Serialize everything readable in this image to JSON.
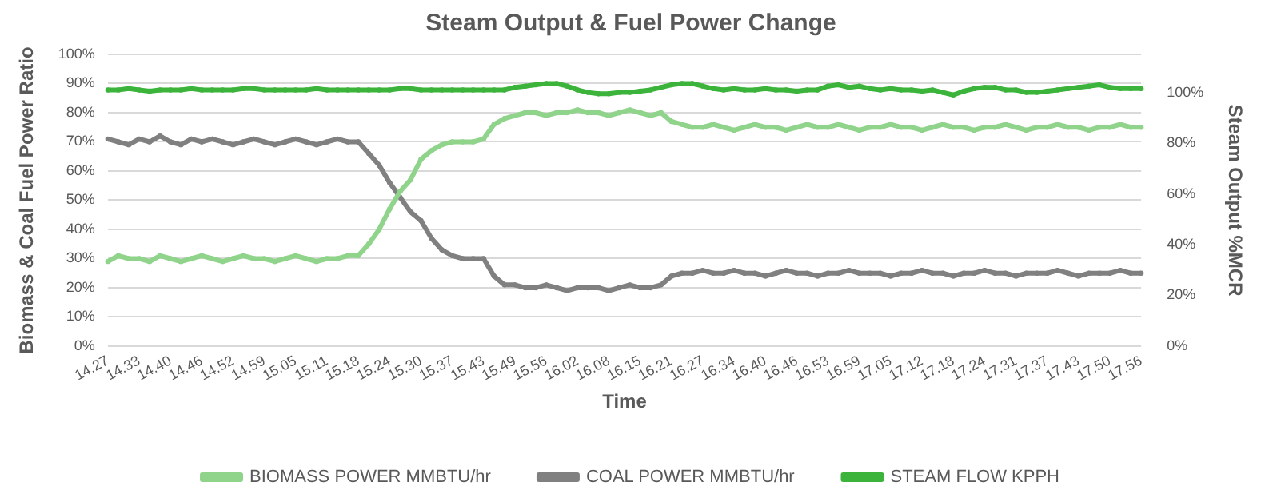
{
  "chart_data": {
    "type": "line",
    "title": "Steam Output & Fuel Power Change",
    "xlabel": "Time",
    "ylabel": "Biomass & Coal Fuel Power Ratio",
    "y2label": "Steam Output %MCR",
    "categories": [
      "14.27",
      null,
      null,
      "14.33",
      null,
      null,
      "14.40",
      null,
      null,
      "14.46",
      null,
      null,
      "14.52",
      null,
      null,
      "14.59",
      null,
      null,
      "15.05",
      null,
      null,
      "15.11",
      null,
      null,
      "15.18",
      null,
      null,
      "15.24",
      null,
      null,
      "15.30",
      null,
      null,
      "15.37",
      null,
      null,
      "15.43",
      null,
      null,
      "15.49",
      null,
      null,
      "15.56",
      null,
      null,
      "16.02",
      null,
      null,
      "16.08",
      null,
      null,
      "16.15",
      null,
      null,
      "16.21",
      null,
      null,
      "16.27",
      null,
      null,
      "16.34",
      null,
      null,
      "16.40",
      null,
      null,
      "16.46",
      null,
      null,
      "16.53",
      null,
      null,
      "16.59",
      null,
      null,
      "17.05",
      null,
      null,
      "17.12",
      null,
      null,
      "17.18",
      null,
      null,
      "17.24",
      null,
      null,
      "17.31",
      null,
      null,
      "17.37",
      null,
      null,
      "17.43",
      null,
      null,
      "17.50",
      null,
      null,
      "17.56"
    ],
    "series": [
      {
        "name": "BIOMASS POWER MMBTU/hr",
        "color": "#8fd48a",
        "values": [
          29,
          31,
          30,
          30,
          29,
          31,
          30,
          29,
          30,
          31,
          30,
          29,
          30,
          31,
          30,
          30,
          29,
          30,
          31,
          30,
          29,
          30,
          30,
          31,
          31,
          35,
          40,
          47,
          53,
          57,
          64,
          67,
          69,
          70,
          70,
          70,
          71,
          76,
          78,
          79,
          80,
          80,
          79,
          80,
          80,
          81,
          80,
          80,
          79,
          80,
          81,
          80,
          79,
          80,
          77,
          76,
          75,
          75,
          76,
          75,
          74,
          75,
          76,
          75,
          75,
          74,
          75,
          76,
          75,
          75,
          76,
          75,
          74,
          75,
          75,
          76,
          75,
          75,
          74,
          75,
          76,
          75,
          75,
          74,
          75,
          75,
          76,
          75,
          74,
          75,
          75,
          76,
          75,
          75,
          74,
          75,
          75,
          76,
          75,
          75
        ]
      },
      {
        "name": "COAL POWER MMBTU/hr",
        "color": "#808080",
        "values": [
          71,
          70,
          69,
          71,
          70,
          72,
          70,
          69,
          71,
          70,
          71,
          70,
          69,
          70,
          71,
          70,
          69,
          70,
          71,
          70,
          69,
          70,
          71,
          70,
          70,
          66,
          62,
          56,
          51,
          46,
          43,
          37,
          33,
          31,
          30,
          30,
          30,
          24,
          21,
          21,
          20,
          20,
          21,
          20,
          19,
          20,
          20,
          20,
          19,
          20,
          21,
          20,
          20,
          21,
          24,
          25,
          25,
          26,
          25,
          25,
          26,
          25,
          25,
          24,
          25,
          26,
          25,
          25,
          24,
          25,
          25,
          26,
          25,
          25,
          25,
          24,
          25,
          25,
          26,
          25,
          25,
          24,
          25,
          25,
          26,
          25,
          25,
          24,
          25,
          25,
          25,
          26,
          25,
          24,
          25,
          25,
          25,
          26,
          25,
          25
        ]
      },
      {
        "name": "STEAM FLOW KPPH",
        "color": "#3cb43c",
        "axis": "y2",
        "values": [
          101,
          101,
          101.5,
          101,
          100.5,
          101,
          101,
          101,
          101.5,
          101,
          101,
          101,
          101,
          101.5,
          101.5,
          101,
          101,
          101,
          101,
          101,
          101.5,
          101,
          101,
          101,
          101,
          101,
          101,
          101,
          101.5,
          101.5,
          101,
          101,
          101,
          101,
          101,
          101,
          101,
          101,
          101,
          102,
          102.5,
          103,
          103.5,
          103.5,
          102.5,
          101,
          100,
          99.5,
          99.5,
          100,
          100,
          100.5,
          101,
          102,
          103,
          103.5,
          103.5,
          102.5,
          101.5,
          101,
          101.5,
          101,
          101,
          101.5,
          101,
          101,
          100.5,
          101,
          101,
          102.5,
          103,
          102,
          102.5,
          101.5,
          101,
          101.5,
          101,
          101,
          100.5,
          101,
          100,
          99,
          100.5,
          101.5,
          102,
          102,
          101,
          101,
          100,
          100,
          100.5,
          101,
          101.5,
          102,
          102.5,
          103,
          102,
          101.5,
          101.5,
          101.5
        ]
      }
    ],
    "ylim": [
      0,
      100
    ],
    "yticks": [
      {
        "value": 0,
        "label": "0%"
      },
      {
        "value": 10,
        "label": "10%"
      },
      {
        "value": 20,
        "label": "20%"
      },
      {
        "value": 30,
        "label": "30%"
      },
      {
        "value": 40,
        "label": "40%"
      },
      {
        "value": 50,
        "label": "50%"
      },
      {
        "value": 60,
        "label": "60%"
      },
      {
        "value": 70,
        "label": "70%"
      },
      {
        "value": 80,
        "label": "80%"
      },
      {
        "value": 90,
        "label": "90%"
      },
      {
        "value": 100,
        "label": "100%"
      }
    ],
    "y2lim": [
      0,
      115
    ],
    "y2ticks": [
      {
        "value": 0,
        "label": "0%"
      },
      {
        "value": 20,
        "label": "20%"
      },
      {
        "value": 40,
        "label": "40%"
      },
      {
        "value": 60,
        "label": "60%"
      },
      {
        "value": 80,
        "label": "80%"
      },
      {
        "value": 100,
        "label": "100%"
      }
    ],
    "grid": "y",
    "legend": "bottom",
    "marker": "circle",
    "line_style": "solid"
  }
}
